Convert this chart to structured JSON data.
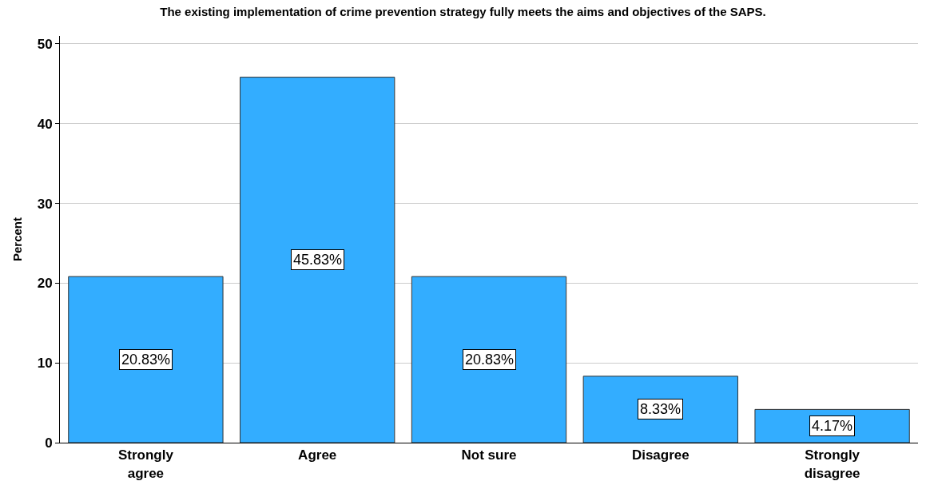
{
  "chart_data": {
    "type": "bar",
    "title": "The existing implementation of crime prevention strategy fully meets the aims and objectives of the SAPS.",
    "ylabel": "Percent",
    "categories": [
      "Strongly agree",
      "Agree",
      "Not sure",
      "Disagree",
      "Strongly disagree"
    ],
    "values": [
      20.83,
      45.83,
      20.83,
      8.33,
      4.17
    ],
    "value_labels": [
      "20.83%",
      "45.83%",
      "20.83%",
      "8.33%",
      "4.17%"
    ],
    "color": "#33adff",
    "ylim": [
      0,
      51
    ],
    "yticks": [
      0,
      10,
      20,
      30,
      40,
      50
    ],
    "grid": "y"
  }
}
